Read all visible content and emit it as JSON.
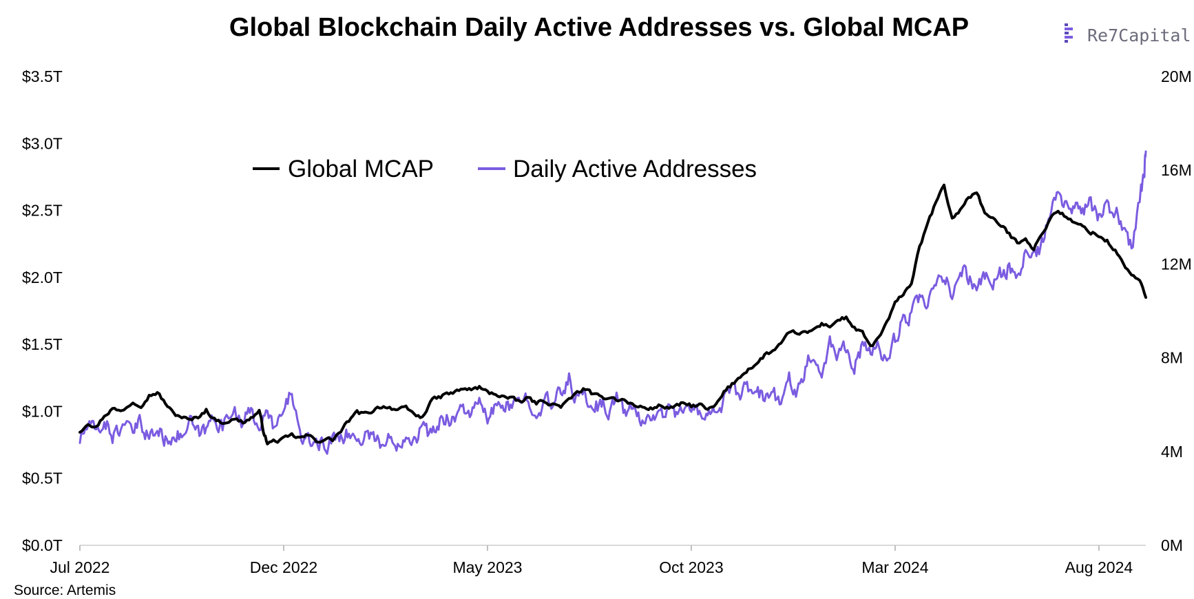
{
  "chart_data": {
    "type": "line",
    "title": "Global Blockchain Daily Active Addresses vs. Global MCAP",
    "source": "Source: Artemis",
    "brand": "Re7Capital",
    "x_ticks": [
      "Jul 2022",
      "Dec 2022",
      "May 2023",
      "Oct 2023",
      "Mar 2024",
      "Aug 2024"
    ],
    "x_tick_indices": [
      0,
      5,
      10,
      15,
      20,
      25
    ],
    "x_range": [
      0,
      26.15
    ],
    "y_left": {
      "ticks": [
        "$0.0T",
        "$0.5T",
        "$1.0T",
        "$1.5T",
        "$2.0T",
        "$2.5T",
        "$3.0T",
        "$3.5T"
      ],
      "range": [
        0,
        3.5
      ],
      "unit": "trillion USD"
    },
    "y_right": {
      "ticks": [
        "0M",
        "4M",
        "8M",
        "12M",
        "16M",
        "20M"
      ],
      "range": [
        0,
        20
      ],
      "unit": "million addresses"
    },
    "series": [
      {
        "name": "Global MCAP",
        "axis": "left",
        "color": "#000000",
        "points": [
          [
            0.0,
            0.85
          ],
          [
            0.2,
            0.92
          ],
          [
            0.4,
            0.88
          ],
          [
            0.6,
            0.97
          ],
          [
            0.8,
            1.02
          ],
          [
            1.0,
            1.0
          ],
          [
            1.3,
            1.07
          ],
          [
            1.5,
            1.05
          ],
          [
            1.7,
            1.12
          ],
          [
            1.9,
            1.14
          ],
          [
            2.1,
            1.06
          ],
          [
            2.3,
            0.98
          ],
          [
            2.5,
            0.96
          ],
          [
            2.7,
            0.93
          ],
          [
            2.9,
            0.96
          ],
          [
            3.1,
            1.01
          ],
          [
            3.3,
            0.94
          ],
          [
            3.5,
            0.92
          ],
          [
            3.8,
            0.94
          ],
          [
            4.0,
            0.92
          ],
          [
            4.2,
            0.95
          ],
          [
            4.4,
            1.0
          ],
          [
            4.5,
            0.86
          ],
          [
            4.6,
            0.76
          ],
          [
            4.8,
            0.78
          ],
          [
            5.0,
            0.79
          ],
          [
            5.2,
            0.82
          ],
          [
            5.4,
            0.8
          ],
          [
            5.6,
            0.82
          ],
          [
            5.8,
            0.78
          ],
          [
            6.0,
            0.79
          ],
          [
            6.2,
            0.79
          ],
          [
            6.4,
            0.85
          ],
          [
            6.6,
            0.93
          ],
          [
            6.8,
            0.99
          ],
          [
            7.0,
            0.98
          ],
          [
            7.2,
            1.01
          ],
          [
            7.4,
            1.04
          ],
          [
            7.6,
            1.03
          ],
          [
            7.8,
            1.01
          ],
          [
            8.0,
            1.02
          ],
          [
            8.2,
            0.98
          ],
          [
            8.4,
            0.95
          ],
          [
            8.6,
            1.08
          ],
          [
            8.8,
            1.1
          ],
          [
            9.0,
            1.13
          ],
          [
            9.2,
            1.14
          ],
          [
            9.4,
            1.17
          ],
          [
            9.6,
            1.16
          ],
          [
            9.8,
            1.18
          ],
          [
            10.0,
            1.14
          ],
          [
            10.2,
            1.13
          ],
          [
            10.4,
            1.11
          ],
          [
            10.6,
            1.09
          ],
          [
            10.8,
            1.07
          ],
          [
            11.0,
            1.1
          ],
          [
            11.2,
            1.06
          ],
          [
            11.4,
            1.08
          ],
          [
            11.6,
            1.05
          ],
          [
            11.8,
            1.04
          ],
          [
            12.0,
            1.08
          ],
          [
            12.2,
            1.14
          ],
          [
            12.4,
            1.17
          ],
          [
            12.6,
            1.12
          ],
          [
            12.8,
            1.1
          ],
          [
            13.0,
            1.11
          ],
          [
            13.2,
            1.09
          ],
          [
            13.4,
            1.08
          ],
          [
            13.6,
            1.04
          ],
          [
            13.8,
            1.03
          ],
          [
            14.0,
            1.02
          ],
          [
            14.2,
            1.04
          ],
          [
            14.4,
            1.03
          ],
          [
            14.6,
            1.03
          ],
          [
            14.8,
            1.06
          ],
          [
            15.0,
            1.04
          ],
          [
            15.2,
            1.05
          ],
          [
            15.4,
            1.01
          ],
          [
            15.6,
            1.04
          ],
          [
            15.8,
            1.14
          ],
          [
            16.0,
            1.2
          ],
          [
            16.2,
            1.26
          ],
          [
            16.4,
            1.32
          ],
          [
            16.6,
            1.35
          ],
          [
            16.8,
            1.42
          ],
          [
            17.0,
            1.45
          ],
          [
            17.2,
            1.5
          ],
          [
            17.4,
            1.58
          ],
          [
            17.6,
            1.59
          ],
          [
            17.8,
            1.58
          ],
          [
            18.0,
            1.61
          ],
          [
            18.2,
            1.65
          ],
          [
            18.4,
            1.64
          ],
          [
            18.6,
            1.68
          ],
          [
            18.8,
            1.7
          ],
          [
            19.0,
            1.62
          ],
          [
            19.2,
            1.58
          ],
          [
            19.4,
            1.48
          ],
          [
            19.6,
            1.55
          ],
          [
            19.8,
            1.66
          ],
          [
            20.0,
            1.8
          ],
          [
            20.2,
            1.88
          ],
          [
            20.4,
            1.96
          ],
          [
            20.6,
            2.22
          ],
          [
            20.8,
            2.4
          ],
          [
            21.0,
            2.56
          ],
          [
            21.2,
            2.68
          ],
          [
            21.4,
            2.44
          ],
          [
            21.6,
            2.5
          ],
          [
            21.8,
            2.6
          ],
          [
            22.0,
            2.64
          ],
          [
            22.2,
            2.48
          ],
          [
            22.4,
            2.43
          ],
          [
            22.6,
            2.39
          ],
          [
            22.8,
            2.32
          ],
          [
            23.0,
            2.26
          ],
          [
            23.2,
            2.3
          ],
          [
            23.4,
            2.21
          ],
          [
            23.6,
            2.32
          ],
          [
            23.8,
            2.44
          ],
          [
            24.0,
            2.5
          ],
          [
            24.2,
            2.45
          ],
          [
            24.4,
            2.4
          ],
          [
            24.6,
            2.38
          ],
          [
            24.8,
            2.34
          ],
          [
            25.0,
            2.31
          ],
          [
            25.2,
            2.27
          ],
          [
            25.4,
            2.2
          ],
          [
            25.6,
            2.1
          ],
          [
            25.8,
            2.02
          ],
          [
            26.0,
            1.97
          ],
          [
            26.15,
            1.85
          ]
        ]
      },
      {
        "name": "Daily Active Addresses",
        "axis": "right",
        "color": "#7b5ce0",
        "points": [
          [
            0.0,
            4.5
          ],
          [
            0.2,
            5.1
          ],
          [
            0.4,
            4.8
          ],
          [
            0.6,
            5.3
          ],
          [
            0.8,
            4.7
          ],
          [
            1.0,
            5.0
          ],
          [
            1.3,
            4.8
          ],
          [
            1.5,
            5.2
          ],
          [
            1.7,
            4.6
          ],
          [
            1.9,
            4.9
          ],
          [
            2.1,
            4.5
          ],
          [
            2.3,
            4.8
          ],
          [
            2.5,
            4.6
          ],
          [
            2.7,
            5.2
          ],
          [
            2.9,
            4.7
          ],
          [
            3.1,
            4.9
          ],
          [
            3.3,
            5.6
          ],
          [
            3.5,
            5.0
          ],
          [
            3.8,
            5.9
          ],
          [
            4.0,
            5.3
          ],
          [
            4.2,
            5.6
          ],
          [
            4.4,
            5.2
          ],
          [
            4.6,
            5.5
          ],
          [
            4.8,
            5.0
          ],
          [
            5.0,
            5.6
          ],
          [
            5.2,
            6.7
          ],
          [
            5.4,
            4.6
          ],
          [
            5.6,
            4.3
          ],
          [
            5.8,
            4.5
          ],
          [
            6.0,
            4.2
          ],
          [
            6.2,
            4.5
          ],
          [
            6.4,
            4.8
          ],
          [
            6.6,
            4.7
          ],
          [
            6.8,
            4.5
          ],
          [
            7.0,
            4.7
          ],
          [
            7.2,
            4.8
          ],
          [
            7.4,
            4.2
          ],
          [
            7.6,
            4.5
          ],
          [
            7.8,
            4.4
          ],
          [
            8.0,
            4.8
          ],
          [
            8.2,
            4.6
          ],
          [
            8.4,
            5.0
          ],
          [
            8.6,
            4.7
          ],
          [
            8.8,
            5.2
          ],
          [
            9.0,
            5.5
          ],
          [
            9.2,
            5.4
          ],
          [
            9.4,
            5.9
          ],
          [
            9.6,
            5.6
          ],
          [
            9.8,
            6.0
          ],
          [
            10.0,
            5.4
          ],
          [
            10.2,
            5.8
          ],
          [
            10.4,
            6.1
          ],
          [
            10.6,
            5.7
          ],
          [
            10.8,
            6.2
          ],
          [
            11.0,
            6.3
          ],
          [
            11.2,
            5.8
          ],
          [
            11.4,
            6.1
          ],
          [
            11.6,
            6.0
          ],
          [
            11.8,
            6.5
          ],
          [
            12.0,
            7.1
          ],
          [
            12.2,
            6.2
          ],
          [
            12.4,
            6.4
          ],
          [
            12.6,
            5.9
          ],
          [
            12.8,
            6.0
          ],
          [
            13.0,
            5.8
          ],
          [
            13.2,
            6.3
          ],
          [
            13.4,
            5.6
          ],
          [
            13.6,
            5.8
          ],
          [
            13.8,
            5.2
          ],
          [
            14.0,
            5.6
          ],
          [
            14.2,
            5.5
          ],
          [
            14.4,
            5.8
          ],
          [
            14.6,
            5.7
          ],
          [
            14.8,
            5.9
          ],
          [
            15.0,
            5.6
          ],
          [
            15.2,
            5.7
          ],
          [
            15.4,
            5.8
          ],
          [
            15.6,
            5.6
          ],
          [
            15.8,
            6.2
          ],
          [
            16.0,
            6.5
          ],
          [
            16.2,
            6.4
          ],
          [
            16.4,
            6.7
          ],
          [
            16.6,
            6.4
          ],
          [
            16.8,
            6.3
          ],
          [
            17.0,
            6.6
          ],
          [
            17.2,
            5.8
          ],
          [
            17.4,
            7.2
          ],
          [
            17.6,
            6.6
          ],
          [
            17.8,
            7.6
          ],
          [
            18.0,
            8.3
          ],
          [
            18.2,
            7.2
          ],
          [
            18.4,
            8.8
          ],
          [
            18.6,
            8.1
          ],
          [
            18.8,
            8.6
          ],
          [
            19.0,
            7.7
          ],
          [
            19.2,
            8.5
          ],
          [
            19.4,
            8.2
          ],
          [
            19.6,
            8.4
          ],
          [
            19.8,
            8.0
          ],
          [
            20.0,
            8.8
          ],
          [
            20.2,
            9.6
          ],
          [
            20.4,
            9.9
          ],
          [
            20.6,
            10.4
          ],
          [
            20.8,
            10.1
          ],
          [
            21.0,
            11.1
          ],
          [
            21.2,
            11.4
          ],
          [
            21.4,
            10.8
          ],
          [
            21.6,
            11.8
          ],
          [
            21.8,
            11.5
          ],
          [
            22.0,
            10.9
          ],
          [
            22.2,
            11.4
          ],
          [
            22.4,
            11.2
          ],
          [
            22.6,
            11.6
          ],
          [
            22.8,
            11.9
          ],
          [
            23.0,
            11.3
          ],
          [
            23.2,
            12.4
          ],
          [
            23.4,
            12.2
          ],
          [
            23.6,
            12.8
          ],
          [
            23.8,
            14.0
          ],
          [
            24.0,
            15.0
          ],
          [
            24.2,
            14.3
          ],
          [
            24.4,
            14.5
          ],
          [
            24.6,
            14.1
          ],
          [
            24.8,
            14.6
          ],
          [
            25.0,
            13.9
          ],
          [
            25.2,
            14.4
          ],
          [
            25.4,
            14.2
          ],
          [
            25.6,
            13.7
          ],
          [
            25.8,
            12.6
          ],
          [
            26.0,
            14.8
          ],
          [
            26.1,
            15.6
          ],
          [
            26.15,
            16.8
          ]
        ]
      }
    ],
    "legend": {
      "position": "top-left",
      "entries": [
        "Global MCAP",
        "Daily Active Addresses"
      ]
    },
    "grid": false
  }
}
